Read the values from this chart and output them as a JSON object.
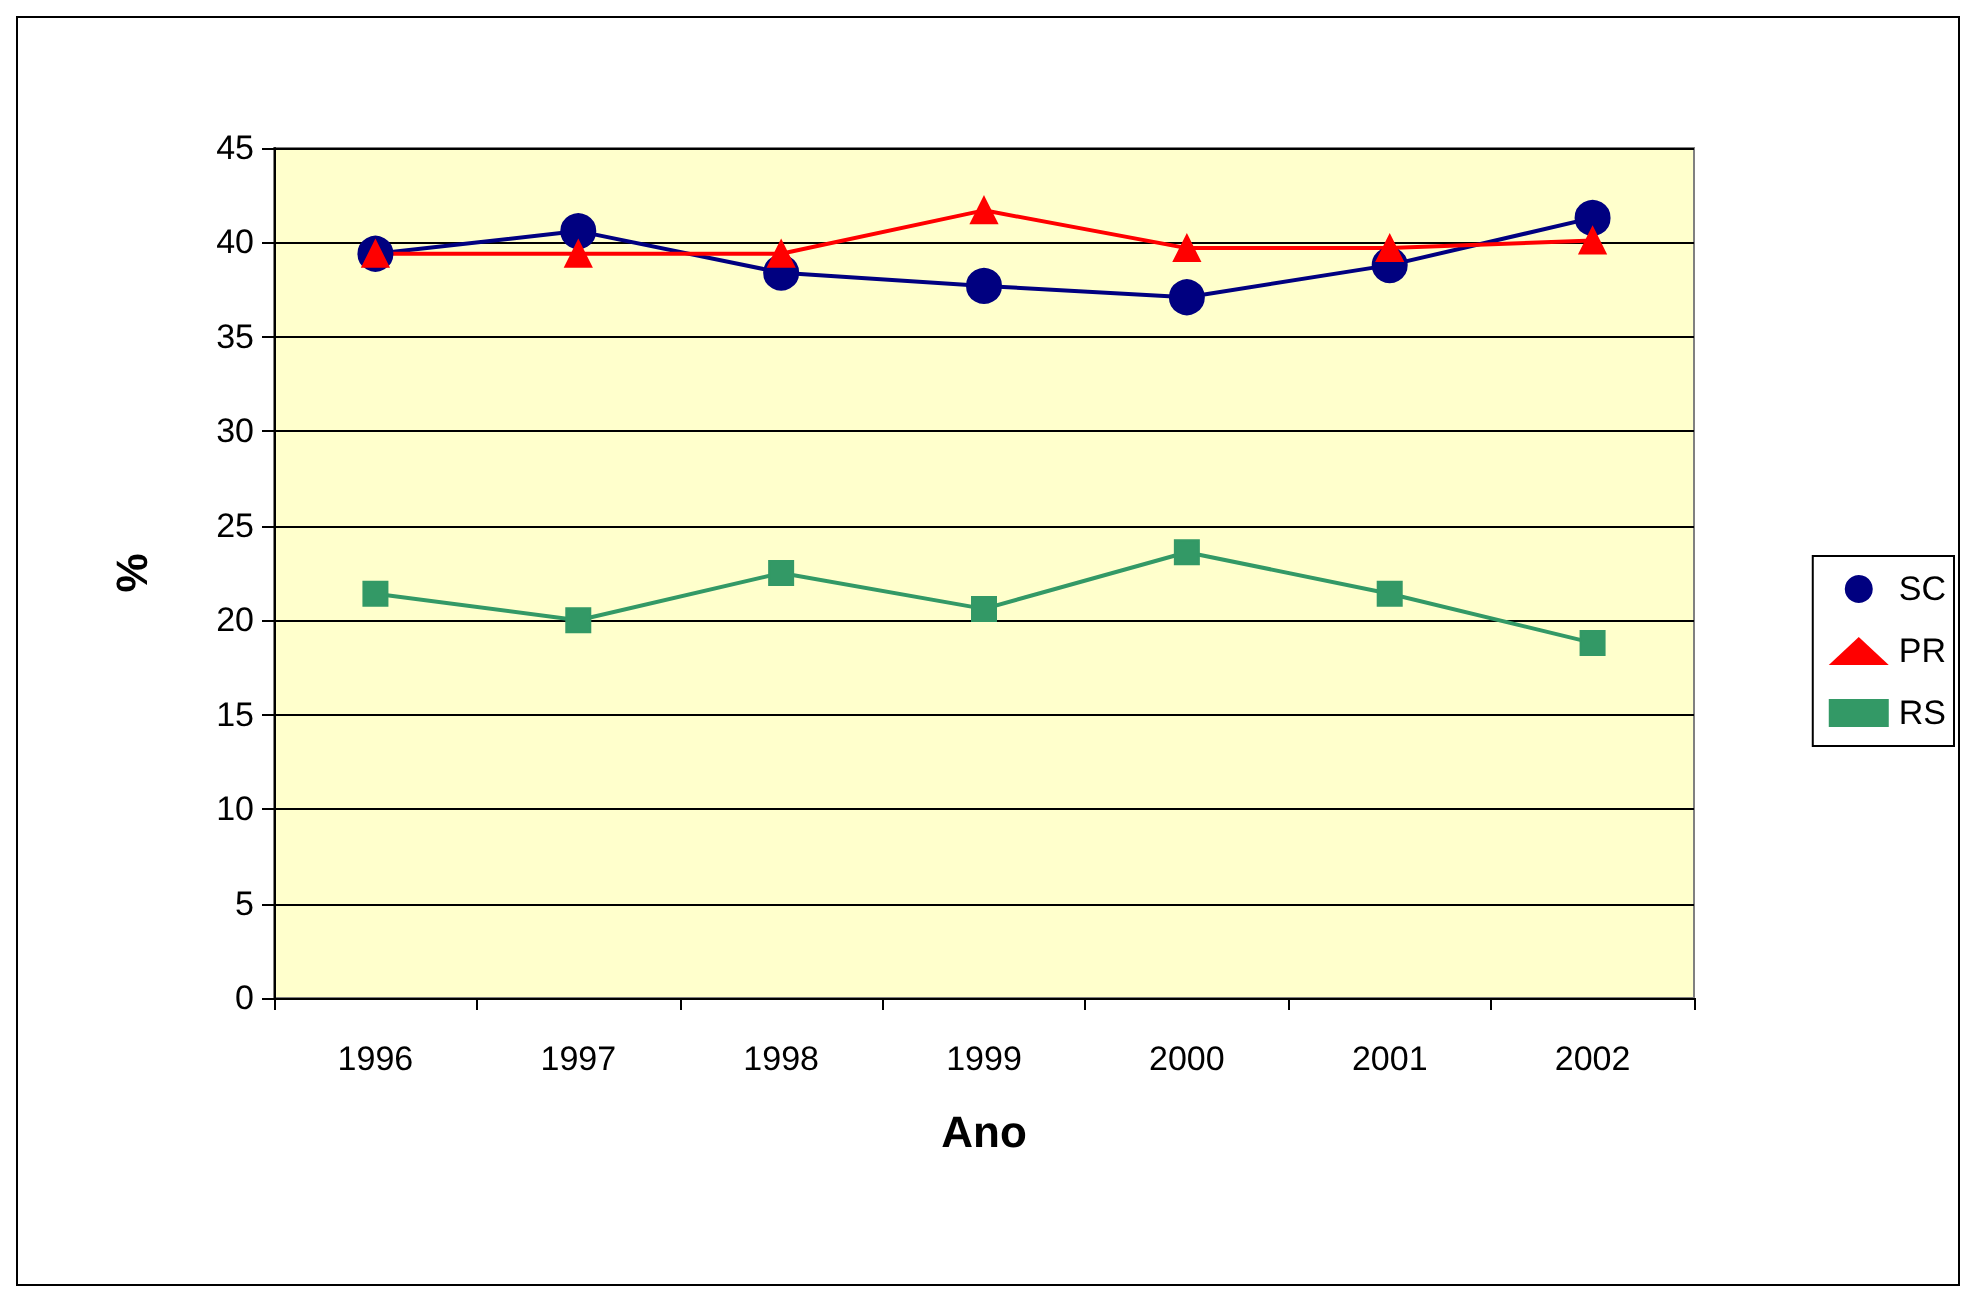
{
  "chart_data": {
    "type": "line",
    "xlabel": "Ano",
    "ylabel": "%",
    "categories": [
      "1996",
      "1997",
      "1998",
      "1999",
      "2000",
      "2001",
      "2002"
    ],
    "series": [
      {
        "name": "SC",
        "color": "#000080",
        "marker": "circle",
        "values": [
          39.4,
          40.6,
          38.4,
          37.7,
          37.1,
          38.8,
          41.3
        ]
      },
      {
        "name": "PR",
        "color": "#ff0000",
        "marker": "triangle",
        "values": [
          39.4,
          39.4,
          39.4,
          41.7,
          39.7,
          39.7,
          40.1
        ]
      },
      {
        "name": "RS",
        "color": "#339966",
        "marker": "square",
        "values": [
          21.4,
          20.0,
          22.5,
          20.6,
          23.6,
          21.4,
          18.8
        ]
      }
    ],
    "ylim": [
      0,
      45
    ],
    "yticks": [
      0,
      5,
      10,
      15,
      20,
      25,
      30,
      35,
      40,
      45
    ],
    "grid": "y",
    "legend": "right"
  }
}
